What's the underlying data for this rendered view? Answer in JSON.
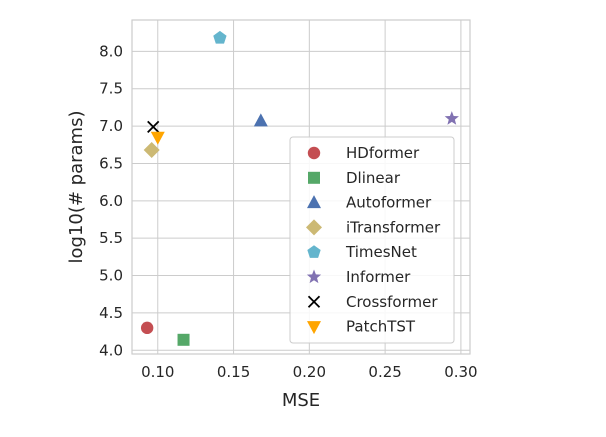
{
  "chart_data": {
    "type": "scatter",
    "title": "",
    "xlabel": "MSE",
    "ylabel": "log10(# params)",
    "xlim": [
      0.083,
      0.306
    ],
    "ylim": [
      3.95,
      8.42
    ],
    "xticks": [
      0.1,
      0.15,
      0.2,
      0.25,
      0.3
    ],
    "xtick_labels": [
      "0.10",
      "0.15",
      "0.20",
      "0.25",
      "0.30"
    ],
    "yticks": [
      4.0,
      4.5,
      5.0,
      5.5,
      6.0,
      6.5,
      7.0,
      7.5,
      8.0
    ],
    "ytick_labels": [
      "4.0",
      "4.5",
      "5.0",
      "5.5",
      "6.0",
      "6.5",
      "7.0",
      "7.5",
      "8.0"
    ],
    "grid": true,
    "legend_position": "lower-right",
    "series": [
      {
        "name": "HDformer",
        "marker": "circle",
        "color": "#c44e52",
        "x": [
          0.093
        ],
        "y": [
          4.3
        ]
      },
      {
        "name": "Dlinear",
        "marker": "square",
        "color": "#55a868",
        "x": [
          0.117
        ],
        "y": [
          4.14
        ]
      },
      {
        "name": "Autoformer",
        "marker": "triangle-up",
        "color": "#4c72b0",
        "x": [
          0.168
        ],
        "y": [
          7.07
        ]
      },
      {
        "name": "iTransformer",
        "marker": "diamond",
        "color": "#ccb974",
        "x": [
          0.096
        ],
        "y": [
          6.68
        ]
      },
      {
        "name": "TimesNet",
        "marker": "pentagon",
        "color": "#64b5cd",
        "x": [
          0.141
        ],
        "y": [
          8.18
        ]
      },
      {
        "name": "Informer",
        "marker": "star",
        "color": "#8172b2",
        "x": [
          0.294
        ],
        "y": [
          7.1
        ]
      },
      {
        "name": "Crossformer",
        "marker": "x",
        "color": "#000000",
        "x": [
          0.097
        ],
        "y": [
          6.99
        ]
      },
      {
        "name": "PatchTST",
        "marker": "triangle-down",
        "color": "#ffa500",
        "x": [
          0.1
        ],
        "y": [
          6.85
        ]
      }
    ]
  }
}
